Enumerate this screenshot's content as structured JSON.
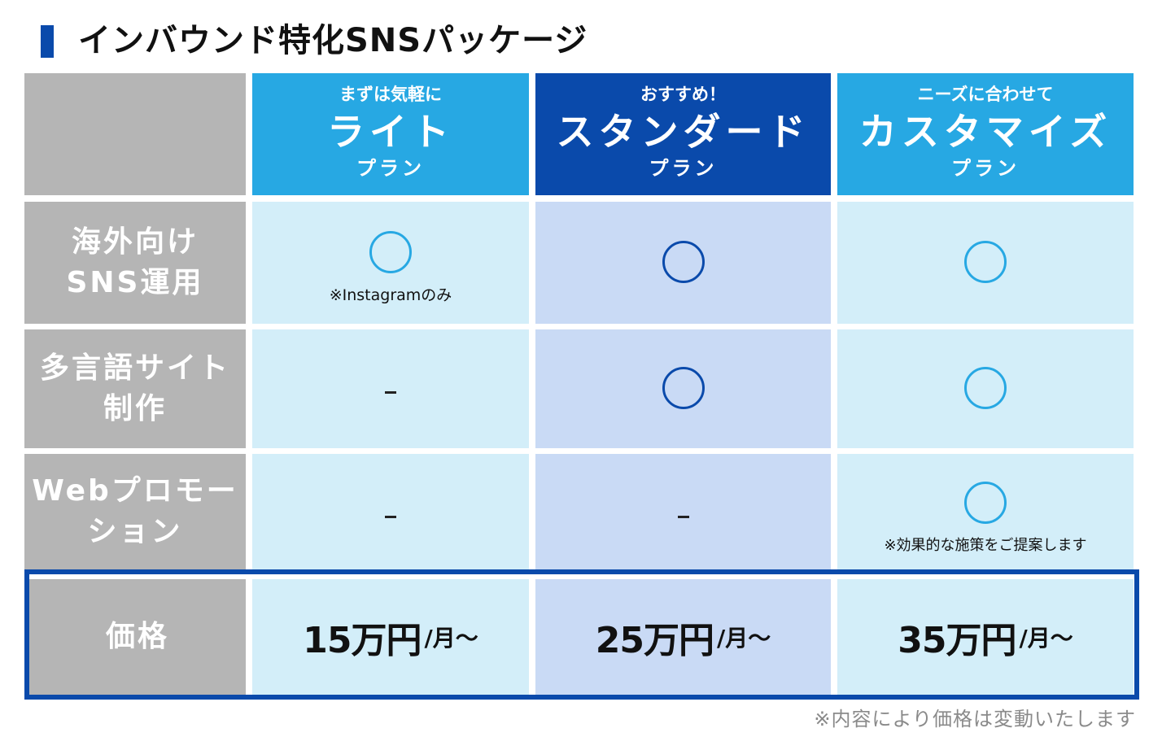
{
  "title": "インバウンド特化SNSパッケージ",
  "plans": [
    {
      "sub": "まずは気軽に",
      "name": "ライト",
      "suffix": "プラン"
    },
    {
      "sub": "おすすめ！",
      "name": "スタンダード",
      "suffix": "プラン"
    },
    {
      "sub": "ニーズに合わせて",
      "name": "カスタマイズ",
      "suffix": "プラン"
    }
  ],
  "rows": [
    {
      "label_lines": [
        "海外向け",
        "SNS運用"
      ],
      "cells": [
        {
          "mark": "circle",
          "note": "※Instagramのみ"
        },
        {
          "mark": "circle"
        },
        {
          "mark": "circle"
        }
      ]
    },
    {
      "label_lines": [
        "多言語サイト",
        "制作"
      ],
      "cells": [
        {
          "mark": "dash"
        },
        {
          "mark": "circle"
        },
        {
          "mark": "circle"
        }
      ]
    },
    {
      "label_lines": [
        "Webプロモー",
        "ション"
      ],
      "cells": [
        {
          "mark": "dash"
        },
        {
          "mark": "dash"
        },
        {
          "mark": "circle",
          "note": "※効果的な施策をご提案します"
        }
      ]
    }
  ],
  "price_row": {
    "label": "価格",
    "prices": [
      {
        "amount": "15万円",
        "unit": "/月〜"
      },
      {
        "amount": "25万円",
        "unit": "/月〜"
      },
      {
        "amount": "35万円",
        "unit": "/月〜"
      }
    ]
  },
  "footnote": "※内容により価格は変動いたします",
  "colors": {
    "accent_dark": "#0a4aab",
    "accent_light": "#27a8e3",
    "label_gray": "#b5b5b5",
    "cell_pale": "#d3eef9",
    "cell_lavender": "#c9daf5"
  }
}
